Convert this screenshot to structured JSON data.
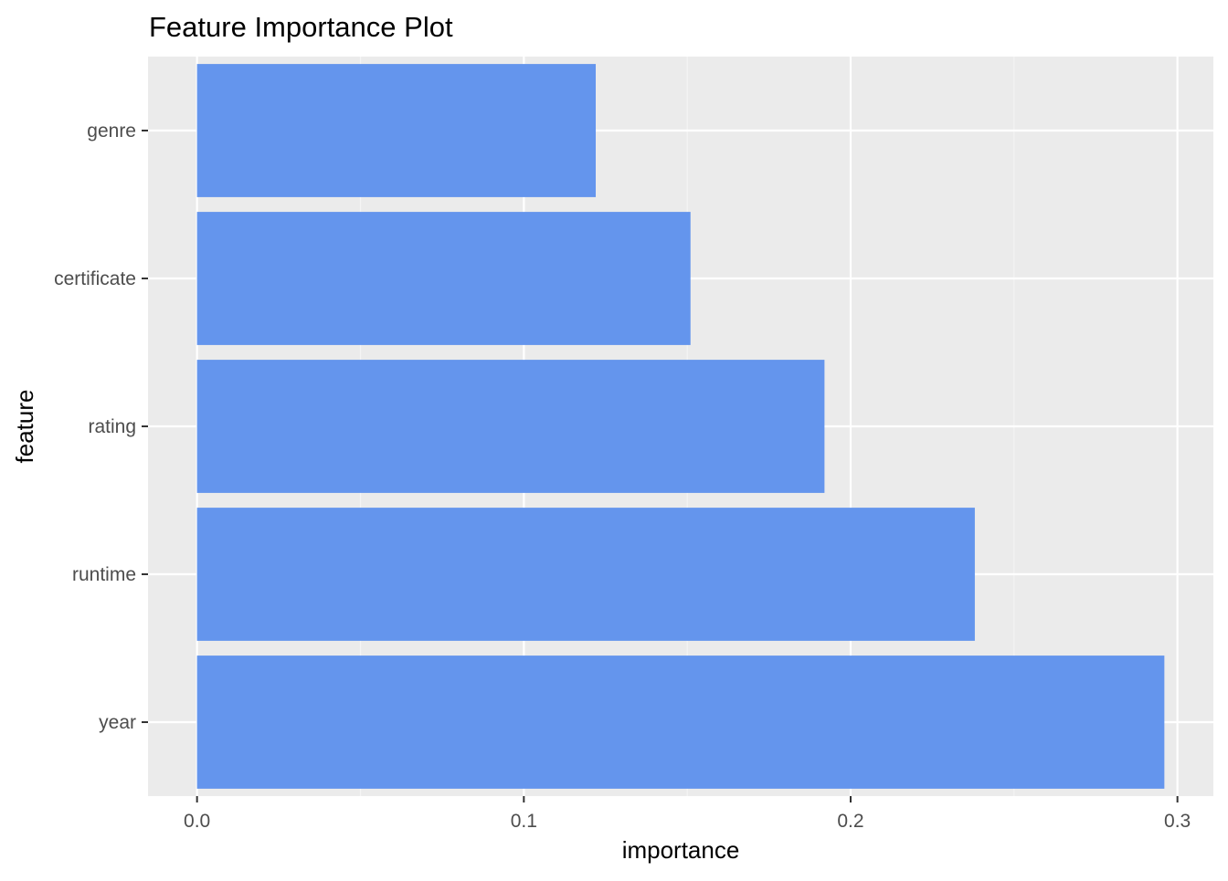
{
  "chart_data": {
    "type": "bar",
    "orientation": "horizontal",
    "title": "Feature Importance Plot",
    "xlabel": "importance",
    "ylabel": "feature",
    "categories": [
      "genre",
      "certificate",
      "rating",
      "runtime",
      "year"
    ],
    "values": [
      0.122,
      0.151,
      0.192,
      0.238,
      0.296
    ],
    "xlim": [
      -0.015,
      0.311
    ],
    "xticks": [
      {
        "value": 0.0,
        "label": "0.0"
      },
      {
        "value": 0.1,
        "label": "0.1"
      },
      {
        "value": 0.2,
        "label": "0.2"
      },
      {
        "value": 0.3,
        "label": "0.3"
      }
    ],
    "grid": true,
    "legend": "none",
    "colors": {
      "bar": "#6495ED",
      "panel": "#EBEBEB",
      "grid_major": "#FFFFFF",
      "grid_minor": "#F5F5F5",
      "tick_text": "#4D4D4D",
      "tick_mark": "#333333",
      "title_text": "#000000"
    }
  }
}
